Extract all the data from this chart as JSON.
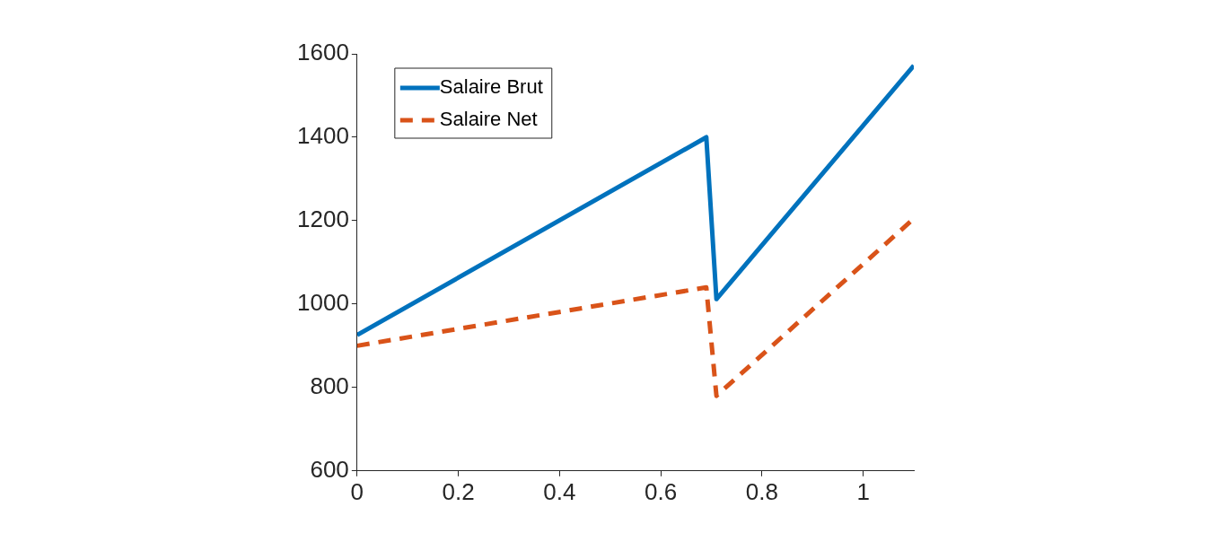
{
  "chart_data": {
    "type": "line",
    "xlim": [
      0,
      1.1
    ],
    "xticks": [
      0,
      0.2,
      0.4,
      0.6,
      0.8,
      1
    ],
    "ylim": [
      600,
      1600
    ],
    "yticks": [
      600,
      800,
      1000,
      1200,
      1400,
      1600
    ],
    "grid": false,
    "legend": "top left",
    "series": [
      {
        "name": "Salaire Brut",
        "color": "#0072bd",
        "line_style": "solid",
        "x": [
          0,
          0.69,
          0.71,
          1.1
        ],
        "values": [
          926,
          1400,
          1012,
          1572
        ]
      },
      {
        "name": "Salaire Net",
        "color": "#d95319",
        "line_style": "dashed",
        "x": [
          0,
          0.69,
          0.71,
          1.1
        ],
        "values": [
          900,
          1040,
          780,
          1205
        ]
      }
    ]
  }
}
